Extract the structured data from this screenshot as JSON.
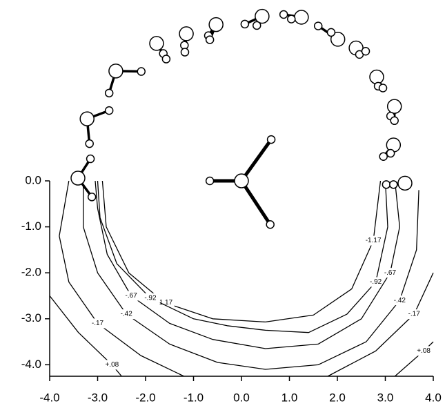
{
  "chart_data": {
    "type": "contour",
    "xlim": [
      -4,
      4
    ],
    "ylim": [
      -4.25,
      0
    ],
    "xticks": [
      {
        "value": -4,
        "label": "-4.0"
      },
      {
        "value": -3,
        "label": "-3.0"
      },
      {
        "value": -2,
        "label": "-2.0"
      },
      {
        "value": -1,
        "label": "-1.0"
      },
      {
        "value": 0,
        "label": "0.0"
      },
      {
        "value": 1,
        "label": "1.0"
      },
      {
        "value": 2,
        "label": "2.0"
      },
      {
        "value": 3,
        "label": "3.0"
      },
      {
        "value": 4,
        "label": "4.0"
      }
    ],
    "yticks": [
      {
        "value": 0,
        "label": "0.0"
      },
      {
        "value": -1,
        "label": "-1.0"
      },
      {
        "value": -2,
        "label": "-2.0"
      },
      {
        "value": -3,
        "label": "-3.0"
      },
      {
        "value": -4,
        "label": "-4.0"
      }
    ],
    "contours": [
      {
        "level": {
          "value": -1.17,
          "label": "-1.17"
        },
        "x": [
          -2.9,
          -2.82,
          -2.35,
          -1.6,
          -0.6,
          0.5,
          1.5,
          2.3,
          2.75,
          2.9
        ],
        "y": [
          0,
          -1.0,
          -2.0,
          -2.65,
          -3.0,
          -3.07,
          -2.92,
          -2.35,
          -1.3,
          0
        ]
      },
      {
        "level": {
          "value": -0.92,
          "label": "-.92"
        },
        "x": [
          -3.0,
          -2.95,
          -2.6,
          -1.9,
          -1.0,
          -0.3,
          0.5,
          1.4,
          2.2,
          2.8,
          3.05,
          3.0
        ],
        "y": [
          0,
          -0.8,
          -1.8,
          -2.55,
          -3.0,
          -3.15,
          -3.25,
          -3.3,
          -2.9,
          -2.2,
          -1.0,
          0
        ]
      },
      {
        "level": {
          "value": -0.67,
          "label": "-.67"
        },
        "x": [
          -3.05,
          -3.0,
          -2.8,
          -2.3,
          -1.5,
          -0.6,
          0.5,
          1.6,
          2.5,
          3.1,
          3.3,
          3.2
        ],
        "y": [
          0,
          -0.6,
          -1.6,
          -2.5,
          -3.1,
          -3.45,
          -3.65,
          -3.55,
          -3.0,
          -2.0,
          -1.0,
          0
        ]
      },
      {
        "level": {
          "value": -0.42,
          "label": "-.42"
        },
        "x": [
          -3.3,
          -3.3,
          -3.0,
          -2.4,
          -1.5,
          -0.5,
          0.5,
          1.6,
          2.6,
          3.3,
          3.65,
          3.7
        ],
        "y": [
          -0.1,
          -1.0,
          -2.0,
          -2.9,
          -3.55,
          -3.95,
          -4.1,
          -4.0,
          -3.5,
          -2.6,
          -1.5,
          -0.2
        ]
      },
      {
        "level": {
          "value": -0.17,
          "label": "-.17"
        },
        "x": [
          -3.6,
          -3.8,
          -3.6,
          -3.0,
          -2.1,
          -1.2,
          null,
          1.8,
          2.8,
          3.6,
          4.0
        ],
        "y": [
          0,
          -1.2,
          -2.2,
          -3.1,
          -3.8,
          -4.25,
          null,
          -4.25,
          -3.7,
          -2.9,
          -2.0
        ]
      },
      {
        "level": {
          "value": 0.08,
          "label": "+.08"
        },
        "x": [
          -4.0,
          -3.4,
          -2.7,
          -2.5,
          null,
          3.2,
          3.8,
          4.0
        ],
        "y": [
          -2.5,
          -3.3,
          -4.0,
          -4.25,
          null,
          -4.25,
          -3.7,
          -3.5
        ]
      }
    ],
    "solute": {
      "x": [
        0,
        -0.66,
        0.62,
        0.6
      ],
      "y": [
        0,
        0,
        0.9,
        -0.95
      ]
    },
    "waters": [
      {
        "x": [
          -3.41,
          -3.15,
          -3.12
        ],
        "y": [
          0.06,
          0.48,
          -0.35
        ]
      },
      {
        "x": [
          -3.22,
          -2.76,
          -3.17
        ],
        "y": [
          1.35,
          1.53,
          0.81
        ]
      },
      {
        "x": [
          -2.62,
          -2.09,
          -2.76
        ],
        "y": [
          2.39,
          2.38,
          1.91
        ]
      },
      {
        "x": [
          -1.77,
          -1.63,
          -1.57
        ],
        "y": [
          2.99,
          2.77,
          2.65
        ]
      },
      {
        "x": [
          -1.15,
          -1.19,
          -1.18
        ],
        "y": [
          3.2,
          2.95,
          2.8
        ]
      },
      {
        "x": [
          -0.53,
          -0.69,
          -0.66
        ],
        "y": [
          3.4,
          3.16,
          3.07
        ]
      },
      {
        "x": [
          0.43,
          0.07,
          0.32
        ],
        "y": [
          3.58,
          3.41,
          3.38
        ]
      },
      {
        "x": [
          1.25,
          0.88,
          1.04
        ],
        "y": [
          3.56,
          3.62,
          3.52
        ]
      },
      {
        "x": [
          2.01,
          1.6,
          1.87
        ],
        "y": [
          3.08,
          3.37,
          3.23
        ]
      },
      {
        "x": [
          2.39,
          2.46,
          2.59
        ],
        "y": [
          2.89,
          2.75,
          2.82
        ]
      },
      {
        "x": [
          2.82,
          2.85,
          2.95
        ],
        "y": [
          2.26,
          2.06,
          2.02
        ]
      },
      {
        "x": [
          3.19,
          3.11,
          3.19
        ],
        "y": [
          1.62,
          1.41,
          1.31
        ]
      },
      {
        "x": [
          3.17,
          2.96,
          3.11
        ],
        "y": [
          0.78,
          0.53,
          0.6
        ]
      },
      {
        "x": [
          3.41,
          3.02,
          3.17
        ],
        "y": [
          -0.05,
          -0.08,
          -0.08
        ]
      }
    ]
  }
}
